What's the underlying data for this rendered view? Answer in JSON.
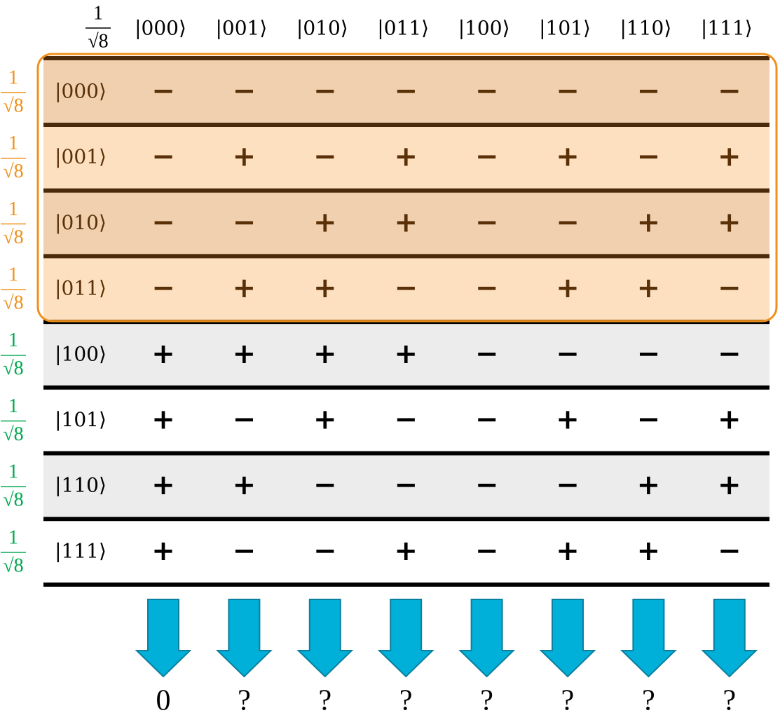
{
  "header": {
    "coefficient": {
      "numerator": "1",
      "denominator": "√8"
    },
    "columns": [
      "|000⟩",
      "|001⟩",
      "|010⟩",
      "|011⟩",
      "|100⟩",
      "|101⟩",
      "|110⟩",
      "|111⟩"
    ]
  },
  "rows": [
    {
      "coefficient": {
        "numerator": "1",
        "denominator": "√8"
      },
      "label": "|000⟩",
      "signs": [
        "−",
        "−",
        "−",
        "−",
        "−",
        "−",
        "−",
        "−"
      ]
    },
    {
      "coefficient": {
        "numerator": "1",
        "denominator": "√8"
      },
      "label": "|001⟩",
      "signs": [
        "−",
        "+",
        "−",
        "+",
        "−",
        "+",
        "−",
        "+"
      ]
    },
    {
      "coefficient": {
        "numerator": "1",
        "denominator": "√8"
      },
      "label": "|010⟩",
      "signs": [
        "−",
        "−",
        "+",
        "+",
        "−",
        "−",
        "+",
        "+"
      ]
    },
    {
      "coefficient": {
        "numerator": "1",
        "denominator": "√8"
      },
      "label": "|011⟩",
      "signs": [
        "−",
        "+",
        "+",
        "−",
        "−",
        "+",
        "+",
        "−"
      ]
    },
    {
      "coefficient": {
        "numerator": "1",
        "denominator": "√8"
      },
      "label": "|100⟩",
      "signs": [
        "+",
        "+",
        "+",
        "+",
        "−",
        "−",
        "−",
        "−"
      ]
    },
    {
      "coefficient": {
        "numerator": "1",
        "denominator": "√8"
      },
      "label": "|101⟩",
      "signs": [
        "+",
        "−",
        "+",
        "−",
        "−",
        "+",
        "−",
        "+"
      ]
    },
    {
      "coefficient": {
        "numerator": "1",
        "denominator": "√8"
      },
      "label": "|110⟩",
      "signs": [
        "+",
        "+",
        "−",
        "−",
        "−",
        "−",
        "+",
        "+"
      ]
    },
    {
      "coefficient": {
        "numerator": "1",
        "denominator": "√8"
      },
      "label": "|111⟩",
      "signs": [
        "+",
        "−",
        "−",
        "+",
        "−",
        "+",
        "+",
        "−"
      ]
    }
  ],
  "results": [
    "0",
    "?",
    "?",
    "?",
    "?",
    "?",
    "?",
    "?"
  ]
}
